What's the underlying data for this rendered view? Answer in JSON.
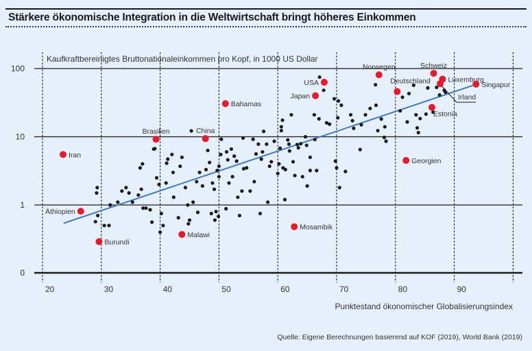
{
  "title": "Stärkere ökonomische Integration in die Weltwirtschaft bringt höheres Einkommen",
  "source": "Quelle: Eigene Berechnungen basierend auf KOF (2019), World Bank (2019)",
  "colors": {
    "highlight": "#e8192c",
    "dot": "#1a1a1a",
    "trend": "#3b7cc4",
    "background": "#e6f0fa"
  },
  "chart_data": {
    "type": "scatter",
    "title": "Stärkere ökonomische Integration in die Weltwirtschaft bringt höheres Einkommen",
    "xlabel": "Punktestand ökonomischer Globalisierungsindex",
    "ylabel": "Kaufkraftbereinigtes Bruttonationaleinkommen pro Kopf, in 1000 US Dollar",
    "xlim": [
      20,
      100
    ],
    "x_ticks": [
      "20",
      "30",
      "40",
      "50",
      "60",
      "70",
      "80",
      "90"
    ],
    "y_scale": "log",
    "y_ticks": [
      "100",
      "10",
      "1",
      "0"
    ],
    "grid": true,
    "trendline": {
      "x": [
        23.6,
        93.7
      ],
      "y": [
        0.54,
        58.6
      ]
    },
    "highlighted": [
      {
        "label": "Iran",
        "x": 23.5,
        "y": 5.5,
        "label_pos": "right"
      },
      {
        "label": "Äthiopien",
        "x": 26.5,
        "y": 0.81,
        "label_pos": "left"
      },
      {
        "label": "Burundi",
        "x": 29.6,
        "y": 0.29,
        "label_pos": "right"
      },
      {
        "label": "Brasilien",
        "x": 39.3,
        "y": 9.2,
        "label_pos": "top"
      },
      {
        "label": "China",
        "x": 47.7,
        "y": 9.4,
        "label_pos": "top"
      },
      {
        "label": "Bahamas",
        "x": 51.1,
        "y": 30.6,
        "label_pos": "right"
      },
      {
        "label": "Malawi",
        "x": 43.7,
        "y": 0.37,
        "label_pos": "right"
      },
      {
        "label": "Mosambik",
        "x": 62.8,
        "y": 0.48,
        "label_pos": "right"
      },
      {
        "label": "Japan",
        "x": 66.4,
        "y": 40,
        "label_pos": "left"
      },
      {
        "label": "USA",
        "x": 67.9,
        "y": 63,
        "label_pos": "left"
      },
      {
        "label": "Norwegen",
        "x": 77.2,
        "y": 81,
        "label_pos": "top"
      },
      {
        "label": "Deutschland",
        "x": 80.3,
        "y": 46,
        "label_pos": "topleft"
      },
      {
        "label": "Schweiz",
        "x": 86.5,
        "y": 85,
        "label_pos": "top"
      },
      {
        "label": "Luxemburg",
        "x": 88.0,
        "y": 70,
        "label_pos": "right"
      },
      {
        "label": "Irland",
        "x": 87.6,
        "y": 60,
        "label_pos": "leader"
      },
      {
        "label": "Singapur",
        "x": 93.7,
        "y": 59,
        "label_pos": "right"
      },
      {
        "label": "Estonia",
        "x": 86.2,
        "y": 27,
        "label_pos": "bottom"
      },
      {
        "label": "Georgien",
        "x": 81.8,
        "y": 4.5,
        "label_pos": "right"
      }
    ],
    "points": [
      [
        29.2,
        1.5
      ],
      [
        29.3,
        1.8
      ],
      [
        29.0,
        0.57
      ],
      [
        29.4,
        0.7
      ],
      [
        30.5,
        0.5
      ],
      [
        31.3,
        0.5
      ],
      [
        31.5,
        1.0
      ],
      [
        32.8,
        1.1
      ],
      [
        33.5,
        1.6
      ],
      [
        34.2,
        1.8
      ],
      [
        34.7,
        1.5
      ],
      [
        35.3,
        1.1
      ],
      [
        36.3,
        1.4
      ],
      [
        36.8,
        1.7
      ],
      [
        37.1,
        0.9
      ],
      [
        36.6,
        3.5
      ],
      [
        37.0,
        4.0
      ],
      [
        37.6,
        0.9
      ],
      [
        38.3,
        0.85
      ],
      [
        38.6,
        0.56
      ],
      [
        38.9,
        6.6
      ],
      [
        39.1,
        6.7
      ],
      [
        39.4,
        2.5
      ],
      [
        39.8,
        2.0
      ],
      [
        40.2,
        0.75
      ],
      [
        40.0,
        0.4
      ],
      [
        40.5,
        0.5
      ],
      [
        41.0,
        2.1
      ],
      [
        41.1,
        4.1
      ],
      [
        41.3,
        4.7
      ],
      [
        42.0,
        5.5
      ],
      [
        42.2,
        3.0
      ],
      [
        42.3,
        1.3
      ],
      [
        43.1,
        0.65
      ],
      [
        43.4,
        3.7
      ],
      [
        43.7,
        5.0
      ],
      [
        44.3,
        1.8
      ],
      [
        44.7,
        1.0
      ],
      [
        44.8,
        0.53
      ],
      [
        45.3,
        12.2
      ],
      [
        45.0,
        0.6
      ],
      [
        45.6,
        1.1
      ],
      [
        46.4,
        0.78
      ],
      [
        46.2,
        2.2
      ],
      [
        46.7,
        3.0
      ],
      [
        47.2,
        1.9
      ],
      [
        47.8,
        3.3
      ],
      [
        48.1,
        6.3
      ],
      [
        48.4,
        4.2
      ],
      [
        48.7,
        0.75
      ],
      [
        48.9,
        2.1
      ],
      [
        49.2,
        1.7
      ],
      [
        49.3,
        0.6
      ],
      [
        49.5,
        0.8
      ],
      [
        49.9,
        0.68
      ],
      [
        49.7,
        3.2
      ],
      [
        50.0,
        3.7
      ],
      [
        50.0,
        2.6
      ],
      [
        50.3,
        5.5
      ],
      [
        50.4,
        9.2
      ],
      [
        51.3,
        6.0
      ],
      [
        51.5,
        4.6
      ],
      [
        51.2,
        0.88
      ],
      [
        51.7,
        2.1
      ],
      [
        52.1,
        6.6
      ],
      [
        52.3,
        2.6
      ],
      [
        52.6,
        5.2
      ],
      [
        53.0,
        4.4
      ],
      [
        53.2,
        1.3
      ],
      [
        53.5,
        0.7
      ],
      [
        53.9,
        1.6
      ],
      [
        54.1,
        9.6
      ],
      [
        54.2,
        3.4
      ],
      [
        54.7,
        3.5
      ],
      [
        55.3,
        1.6
      ],
      [
        55.8,
        9.2
      ],
      [
        56.0,
        2.2
      ],
      [
        56.3,
        5.6
      ],
      [
        56.7,
        7.8
      ],
      [
        57.0,
        0.75
      ],
      [
        57.2,
        4.7
      ],
      [
        57.4,
        6.0
      ],
      [
        57.6,
        12
      ],
      [
        58.1,
        7.8
      ],
      [
        58.3,
        1.1
      ],
      [
        58.6,
        3.7
      ],
      [
        58.9,
        4.3
      ],
      [
        59.4,
        8.6
      ],
      [
        60.0,
        2.9
      ],
      [
        60.2,
        4.0
      ],
      [
        60.4,
        6.8
      ],
      [
        60.6,
        12.3
      ],
      [
        60.6,
        14
      ],
      [
        60.8,
        17.5
      ],
      [
        60.9,
        3.5
      ],
      [
        61.3,
        3.3
      ],
      [
        61.2,
        1.2
      ],
      [
        61.7,
        9.0
      ],
      [
        61.9,
        7.8
      ],
      [
        62.0,
        6.2
      ],
      [
        62.3,
        21
      ],
      [
        62.6,
        4.3
      ],
      [
        62.9,
        2.7
      ],
      [
        63.3,
        7.7
      ],
      [
        63.5,
        6.9
      ],
      [
        63.9,
        7.9
      ],
      [
        64.2,
        2.6
      ],
      [
        64.7,
        10
      ],
      [
        64.9,
        7.5
      ],
      [
        65.0,
        1.9
      ],
      [
        65.5,
        3.2
      ],
      [
        65.5,
        5.0
      ],
      [
        66.2,
        21
      ],
      [
        66.3,
        9.1
      ],
      [
        66.6,
        3.2
      ],
      [
        67.0,
        18.3
      ],
      [
        67.1,
        75
      ],
      [
        67.8,
        48
      ],
      [
        68.3,
        16
      ],
      [
        68.8,
        15.3
      ],
      [
        69.6,
        36
      ],
      [
        70.0,
        3.5
      ],
      [
        70.3,
        33.5
      ],
      [
        70.5,
        1.8
      ],
      [
        69.8,
        4.4
      ],
      [
        70.2,
        19
      ],
      [
        70.8,
        29
      ],
      [
        71.5,
        3.1
      ],
      [
        72.4,
        21
      ],
      [
        72.7,
        17.2
      ],
      [
        72.9,
        13.3
      ],
      [
        74.0,
        6.5
      ],
      [
        74.2,
        15.0
      ],
      [
        74.9,
        21
      ],
      [
        75.7,
        26
      ],
      [
        76.6,
        58
      ],
      [
        77.0,
        12.3
      ],
      [
        77.6,
        18.2
      ],
      [
        78.1,
        9.8
      ],
      [
        78.4,
        8.6
      ],
      [
        76.7,
        29
      ],
      [
        78.2,
        14
      ],
      [
        80.8,
        24
      ],
      [
        81.2,
        38
      ],
      [
        82.0,
        16.5
      ],
      [
        82.3,
        43
      ],
      [
        83.1,
        57
      ],
      [
        83.5,
        21
      ],
      [
        83.7,
        13.5
      ],
      [
        83.9,
        11.5
      ],
      [
        84.2,
        18.5
      ],
      [
        85.2,
        21.5
      ],
      [
        85.5,
        52
      ],
      [
        86.4,
        23
      ],
      [
        87.0,
        53
      ],
      [
        87.5,
        41
      ],
      [
        88.3,
        48
      ],
      [
        88.5,
        45
      ]
    ]
  }
}
